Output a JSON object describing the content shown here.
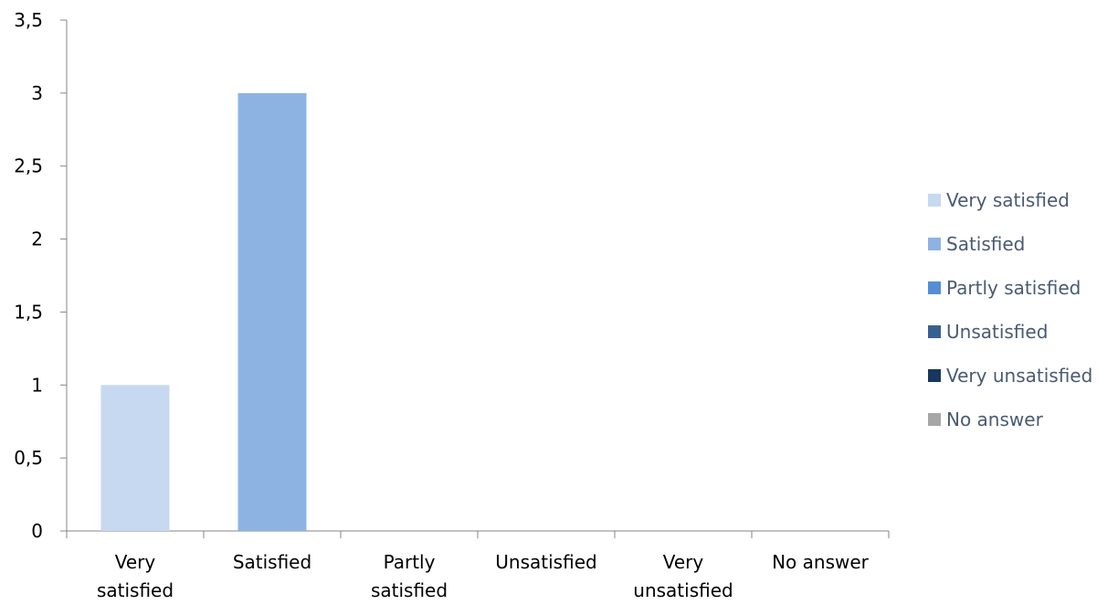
{
  "chart_data": {
    "type": "bar",
    "categories": [
      [
        "Very",
        "satisfied"
      ],
      [
        "Satisfied"
      ],
      [
        "Partly",
        "satisfied"
      ],
      [
        "Unsatisfied"
      ],
      [
        "Very",
        "unsatisfied"
      ],
      [
        "No answer"
      ]
    ],
    "values": [
      1,
      3,
      0,
      0,
      0,
      0
    ],
    "colors": [
      "#c6d9f0",
      "#8db3e2",
      "#558ed5",
      "#376092",
      "#17375e",
      "#a6a6a6"
    ],
    "ylim": [
      0,
      3.5
    ],
    "yticks": [
      "0",
      "0,5",
      "1",
      "1,5",
      "2",
      "2,5",
      "3",
      "3,5"
    ],
    "legend": {
      "placement": "right",
      "items": [
        {
          "label": "Very satisfied",
          "color": "#c6d9f0"
        },
        {
          "label": "Satisfied",
          "color": "#8db3e2"
        },
        {
          "label": "Partly satisfied",
          "color": "#558ed5"
        },
        {
          "label": "Unsatisfied",
          "color": "#376092"
        },
        {
          "label": "Very unsatisfied",
          "color": "#17375e"
        },
        {
          "label": "No answer",
          "color": "#a6a6a6"
        }
      ]
    },
    "grid": false
  }
}
